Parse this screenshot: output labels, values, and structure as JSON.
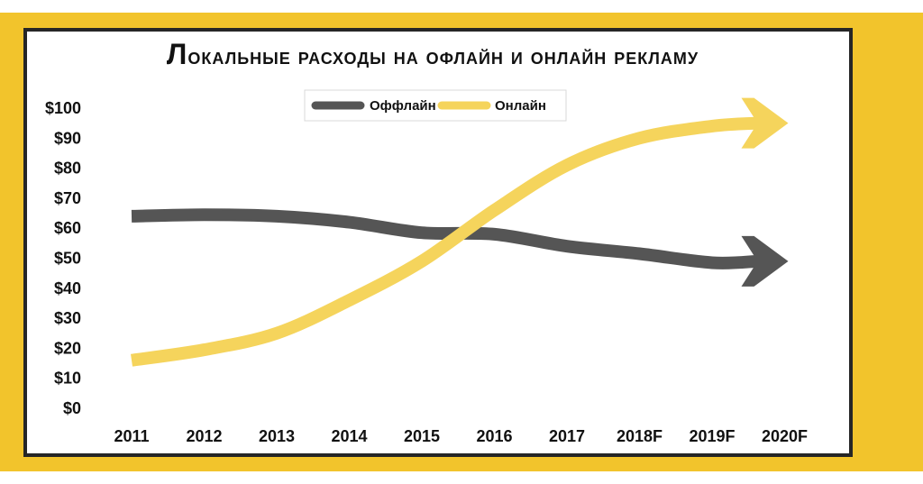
{
  "colors": {
    "frame": "#f2c42c",
    "panel_border": "#262626",
    "offline": "#555555",
    "online": "#f5d45c"
  },
  "chart_data": {
    "type": "line",
    "title": "Локальные расходы на офлайн и онлайн рекламу",
    "xlabel": "",
    "ylabel": "",
    "categories": [
      "2011",
      "2012",
      "2013",
      "2014",
      "2015",
      "2016",
      "2017",
      "2018F",
      "2019F",
      "2020F"
    ],
    "y_ticks": [
      "$0",
      "$10",
      "$20",
      "$30",
      "$40",
      "$50",
      "$60",
      "$70",
      "$80",
      "$90",
      "$100"
    ],
    "ylim": [
      0,
      100
    ],
    "legend": {
      "position": "top-center"
    },
    "series": [
      {
        "name": "Оффлайн",
        "color": "#555555",
        "values": [
          64,
          64.5,
          64,
          62,
          58.5,
          58,
          54,
          51.5,
          48.5,
          49
        ]
      },
      {
        "name": "Онлайн",
        "color": "#f5d45c",
        "values": [
          16,
          19.5,
          25,
          36,
          49,
          66,
          81,
          90,
          94,
          95
        ]
      }
    ]
  }
}
